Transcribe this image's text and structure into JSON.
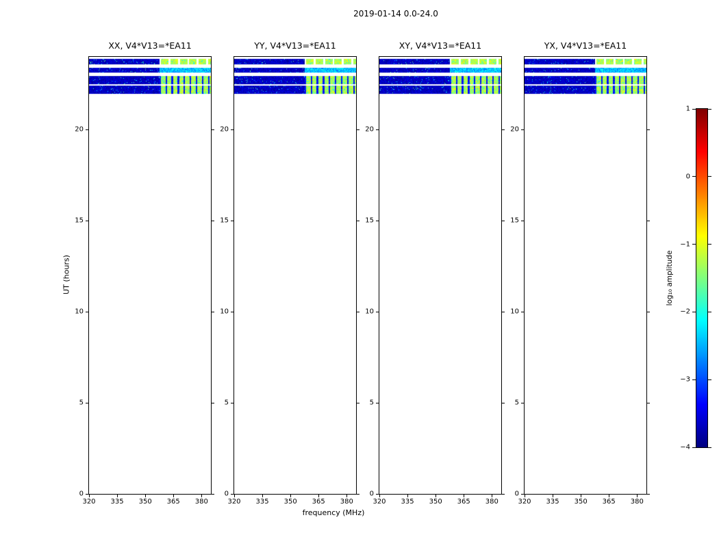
{
  "chart_data": {
    "type": "heatmap",
    "title": "2019-01-14 0.0-24.0",
    "xlabel": "frequency (MHz)",
    "ylabel": "UT (hours)",
    "panels": [
      {
        "label": "XX",
        "title": "XX, V4*V13=*EA11"
      },
      {
        "label": "YY",
        "title": "YY, V4*V13=*EA11"
      },
      {
        "label": "XY",
        "title": "XY, V4*V13=*EA11"
      },
      {
        "label": "YX",
        "title": "YX, V4*V13=*EA11"
      }
    ],
    "freq_range": [
      320,
      385
    ],
    "ut_range": [
      0,
      24
    ],
    "xticks": [
      320,
      335,
      350,
      365,
      380
    ],
    "yticks": [
      0,
      5,
      10,
      15,
      20
    ],
    "grid": false,
    "colorbar": {
      "label": "log₁₀ amplitude",
      "ticks": [
        1,
        0,
        -1,
        -2,
        -3,
        -4
      ],
      "range": [
        -4,
        1
      ],
      "colormap": "jet"
    },
    "bands": [
      {
        "ut_range": [
          23.6,
          23.9
        ],
        "base_amp": -3.9,
        "bright_freq_start": 357.5,
        "bright_amp": -1.25,
        "stripe": "white"
      },
      {
        "ut_range": [
          23.15,
          23.4
        ],
        "base_amp": -3.9,
        "bright_freq_start": 357.5,
        "bright_amp": -2.45,
        "stripe": "none"
      },
      {
        "ut_range": [
          22.5,
          22.95
        ],
        "base_amp": -3.9,
        "bright_freq_start": 357.5,
        "bright_amp": -1.3,
        "stripe": "dark"
      },
      {
        "ut_range": [
          21.95,
          22.42
        ],
        "base_amp": -3.9,
        "bright_freq_start": 357.5,
        "bright_amp": -1.3,
        "stripe": "dark"
      }
    ]
  }
}
